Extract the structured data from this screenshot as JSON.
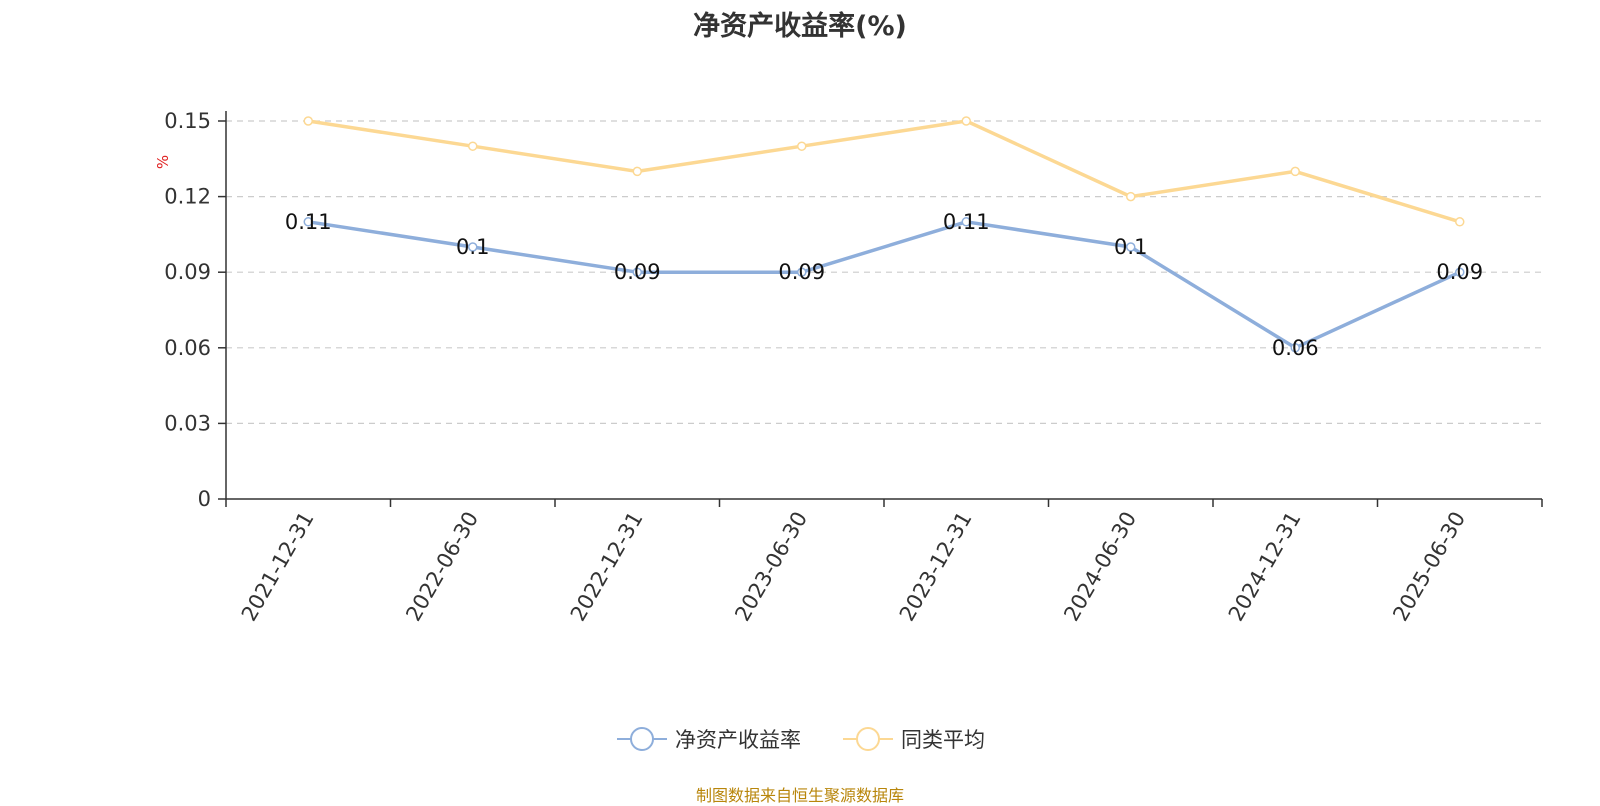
{
  "chart_data": {
    "type": "line",
    "title": "净资产收益率(%)",
    "ylabel": "%",
    "categories": [
      "2021-12-31",
      "2022-06-30",
      "2022-12-31",
      "2023-06-30",
      "2023-12-31",
      "2024-06-30",
      "2024-12-31",
      "2025-06-30"
    ],
    "ylim": [
      0,
      0.15
    ],
    "yticks": [
      "0",
      "0.03",
      "0.06",
      "0.09",
      "0.12",
      "0.15"
    ],
    "ytick_values": [
      0,
      0.03,
      0.06,
      0.09,
      0.12,
      0.15
    ],
    "grid": true,
    "legend_position": "bottom",
    "series": [
      {
        "name": "净资产收益率",
        "values": [
          0.11,
          0.1,
          0.09,
          0.09,
          0.11,
          0.1,
          0.06,
          0.09
        ],
        "data_labels": [
          "0.11",
          "0.1",
          "0.09",
          "0.09",
          "0.11",
          "0.1",
          "0.06",
          "0.09"
        ],
        "color": "#8eaedb"
      },
      {
        "name": "同类平均",
        "values": [
          0.15,
          0.14,
          0.13,
          0.14,
          0.15,
          0.12,
          0.13,
          0.11
        ],
        "color": "#fcd893"
      }
    ]
  },
  "footer": {
    "source": "制图数据来自恒生聚源数据库"
  }
}
